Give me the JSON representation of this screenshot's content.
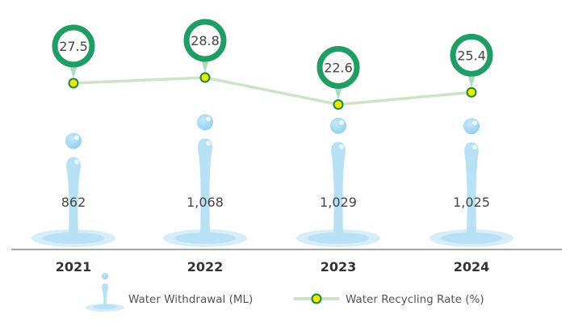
{
  "chart_data": {
    "type": "bar-line",
    "categories": [
      "2021",
      "2022",
      "2023",
      "2024"
    ],
    "series": [
      {
        "name": "Water Withdrawal (ML)",
        "type": "bar",
        "values": [
          862,
          1068,
          1029,
          1025
        ],
        "labels": [
          "862",
          "1,068",
          "1,029",
          "1,025"
        ],
        "color": "#b9e1f5"
      },
      {
        "name": "Water Recycling Rate (%)",
        "type": "line",
        "values": [
          27.5,
          28.8,
          22.6,
          25.4
        ],
        "labels": [
          "27.5",
          "28.8",
          "22.6",
          "25.4"
        ],
        "color": "#cfe3c8",
        "marker_color": "#f2e600",
        "badge_color": "#1f9d62"
      }
    ],
    "legend": {
      "position": "bottom",
      "items": [
        "Water Withdrawal (ML)",
        "Water Recycling Rate (%)"
      ]
    },
    "grid": false
  }
}
